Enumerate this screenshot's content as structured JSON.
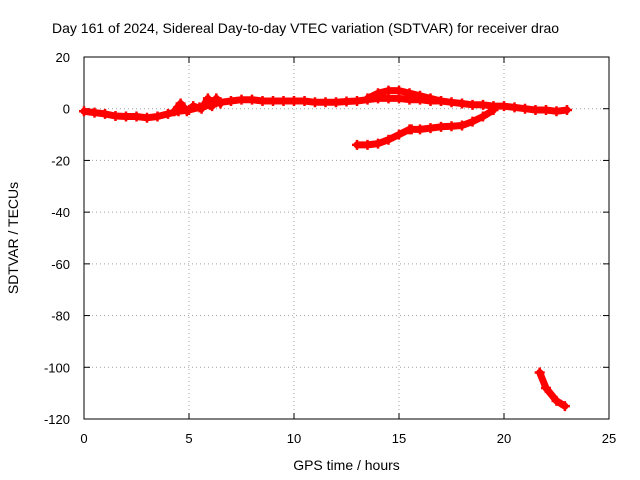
{
  "chart_data": {
    "type": "scatter",
    "title": "Day 161 of 2024, Sidereal Day-to-day VTEC variation (SDTVAR) for receiver drao",
    "xlabel": "GPS time / hours",
    "ylabel": "SDTVAR / TECUs",
    "xlim": [
      0,
      25
    ],
    "ylim": [
      -120,
      20
    ],
    "xticks": [
      0,
      5,
      10,
      15,
      20,
      25
    ],
    "yticks": [
      -120,
      -100,
      -80,
      -60,
      -40,
      -20,
      0,
      20
    ],
    "grid": true,
    "color": "#ff0000",
    "series": [
      {
        "name": "main-band",
        "points": [
          [
            0,
            -1
          ],
          [
            0.5,
            -1.5
          ],
          [
            1,
            -2
          ],
          [
            1.5,
            -2.8
          ],
          [
            2,
            -3
          ],
          [
            2.5,
            -3
          ],
          [
            3,
            -3.5
          ],
          [
            3.5,
            -3
          ],
          [
            4,
            -2
          ],
          [
            4.5,
            -1
          ],
          [
            5,
            -0.5
          ],
          [
            5.5,
            0.5
          ],
          [
            6,
            1.5
          ],
          [
            6.5,
            2.5
          ],
          [
            7,
            3
          ],
          [
            7.5,
            3.5
          ],
          [
            8,
            3.5
          ],
          [
            8.5,
            3
          ],
          [
            9,
            3
          ],
          [
            9.5,
            3
          ],
          [
            10,
            3
          ],
          [
            10.5,
            3
          ],
          [
            11,
            2.5
          ],
          [
            11.5,
            2.5
          ],
          [
            12,
            2.5
          ],
          [
            12.5,
            2.8
          ],
          [
            13,
            3
          ],
          [
            13.5,
            3.5
          ],
          [
            14,
            4
          ],
          [
            14.5,
            4
          ],
          [
            15,
            4
          ],
          [
            15.5,
            3.5
          ],
          [
            16,
            3.5
          ],
          [
            16.5,
            3
          ],
          [
            17,
            3
          ],
          [
            17.5,
            2.5
          ],
          [
            18,
            2
          ],
          [
            18.5,
            1.5
          ],
          [
            19,
            1.5
          ],
          [
            19.5,
            1
          ],
          [
            20,
            1
          ],
          [
            20.5,
            0.5
          ],
          [
            21,
            0
          ],
          [
            21.5,
            -0.5
          ],
          [
            22,
            -0.5
          ],
          [
            22.5,
            -1
          ],
          [
            23,
            -0.5
          ]
        ]
      },
      {
        "name": "upper-arc",
        "points": [
          [
            13.5,
            4
          ],
          [
            14,
            6
          ],
          [
            14.5,
            7
          ],
          [
            15,
            7
          ],
          [
            15.5,
            6
          ],
          [
            16,
            5
          ],
          [
            16.5,
            4
          ],
          [
            17,
            3
          ]
        ]
      },
      {
        "name": "spikes",
        "points": [
          [
            4.3,
            -1
          ],
          [
            4.6,
            2
          ],
          [
            4.9,
            -1
          ],
          [
            5.2,
            1
          ],
          [
            5.6,
            0
          ],
          [
            5.9,
            4
          ],
          [
            6.1,
            1
          ],
          [
            6.3,
            4
          ],
          [
            6.5,
            2
          ]
        ]
      },
      {
        "name": "lower-arc",
        "points": [
          [
            13,
            -14
          ],
          [
            13.5,
            -14
          ],
          [
            14,
            -13.5
          ],
          [
            14.5,
            -12
          ],
          [
            15,
            -10
          ],
          [
            15.5,
            -8
          ]
        ]
      },
      {
        "name": "lower-recovery",
        "points": [
          [
            15.6,
            -8
          ],
          [
            16,
            -8
          ],
          [
            16.5,
            -7.5
          ],
          [
            17,
            -7
          ],
          [
            17.5,
            -6.8
          ],
          [
            18,
            -6.5
          ],
          [
            18.5,
            -5
          ],
          [
            19,
            -3
          ],
          [
            19.5,
            -0.5
          ]
        ]
      },
      {
        "name": "dip",
        "points": [
          [
            21.7,
            -102
          ],
          [
            22,
            -108
          ],
          [
            22.5,
            -113
          ],
          [
            22.9,
            -115
          ]
        ]
      }
    ]
  }
}
